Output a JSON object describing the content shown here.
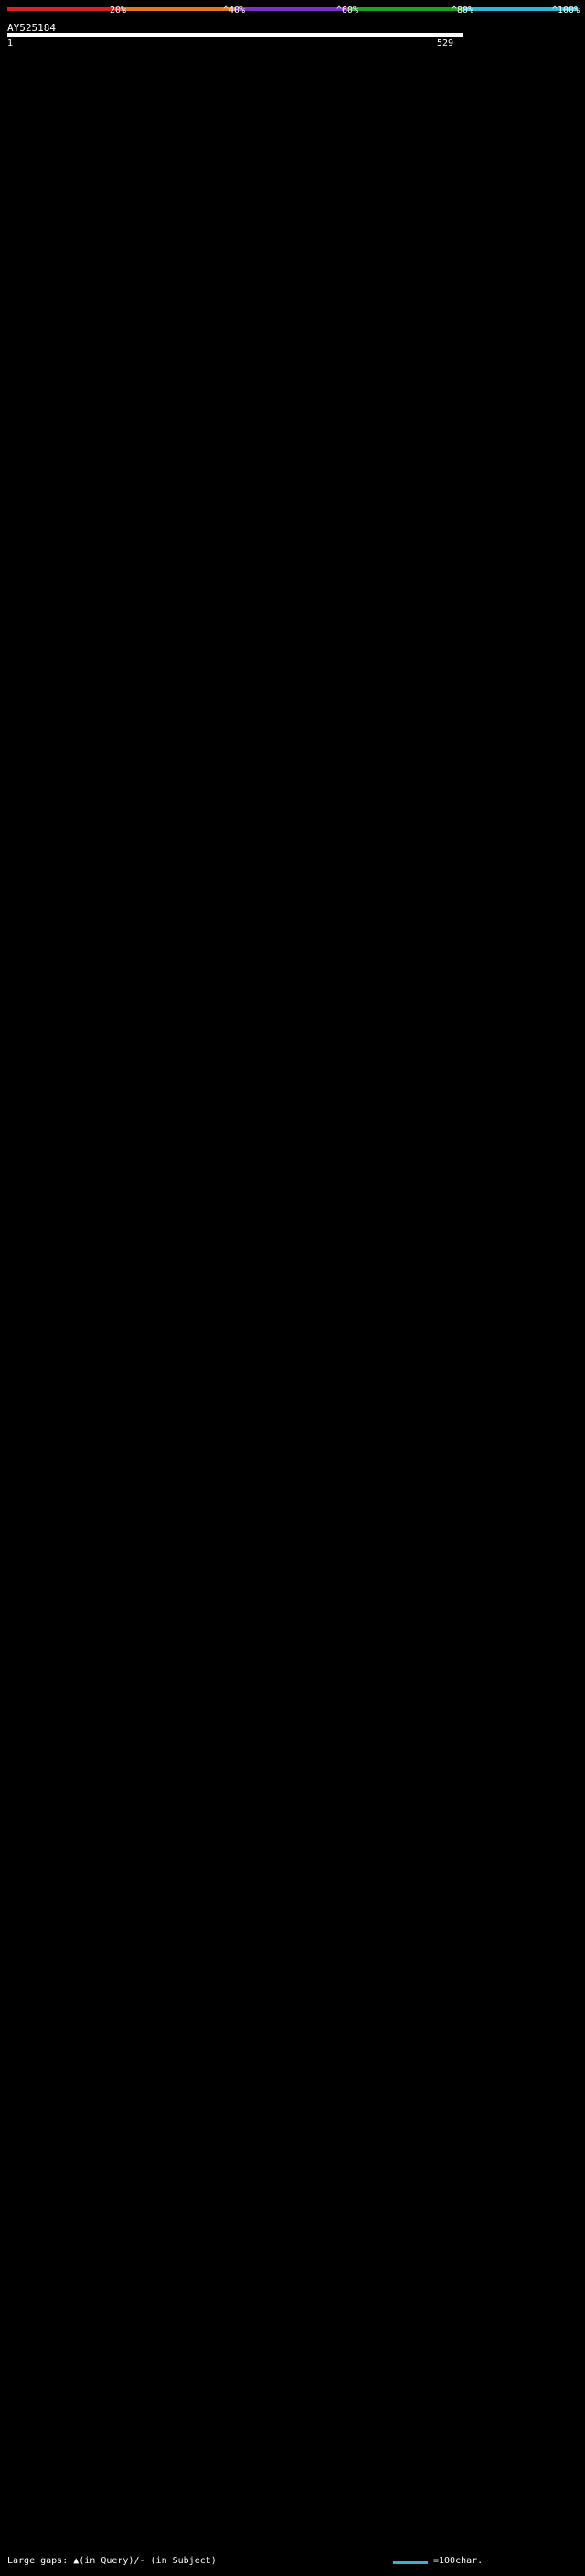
{
  "header": {
    "color_scale": [
      {
        "label": "20%",
        "color": "#e02020"
      },
      {
        "label": "^40%",
        "color": "#e07820"
      },
      {
        "label": "^60%",
        "color": "#8030c0"
      },
      {
        "label": "^80%",
        "color": "#20a020"
      },
      {
        "label": "^100%",
        "color": "#30b8d8"
      }
    ],
    "query_name": "AY525184",
    "scale_start": "1",
    "scale_end": "529"
  },
  "legend": {
    "gaps_text": "Large gaps: ▲(in Query)/- (in Subject)",
    "bar_text": "=100char.",
    "bar_color": "#3ab0d0"
  },
  "chart_data": {
    "type": "alignment",
    "query_length": 529,
    "colors": {
      "high": "#30b8d8",
      "mid": "#20a020"
    },
    "hits": []
  }
}
